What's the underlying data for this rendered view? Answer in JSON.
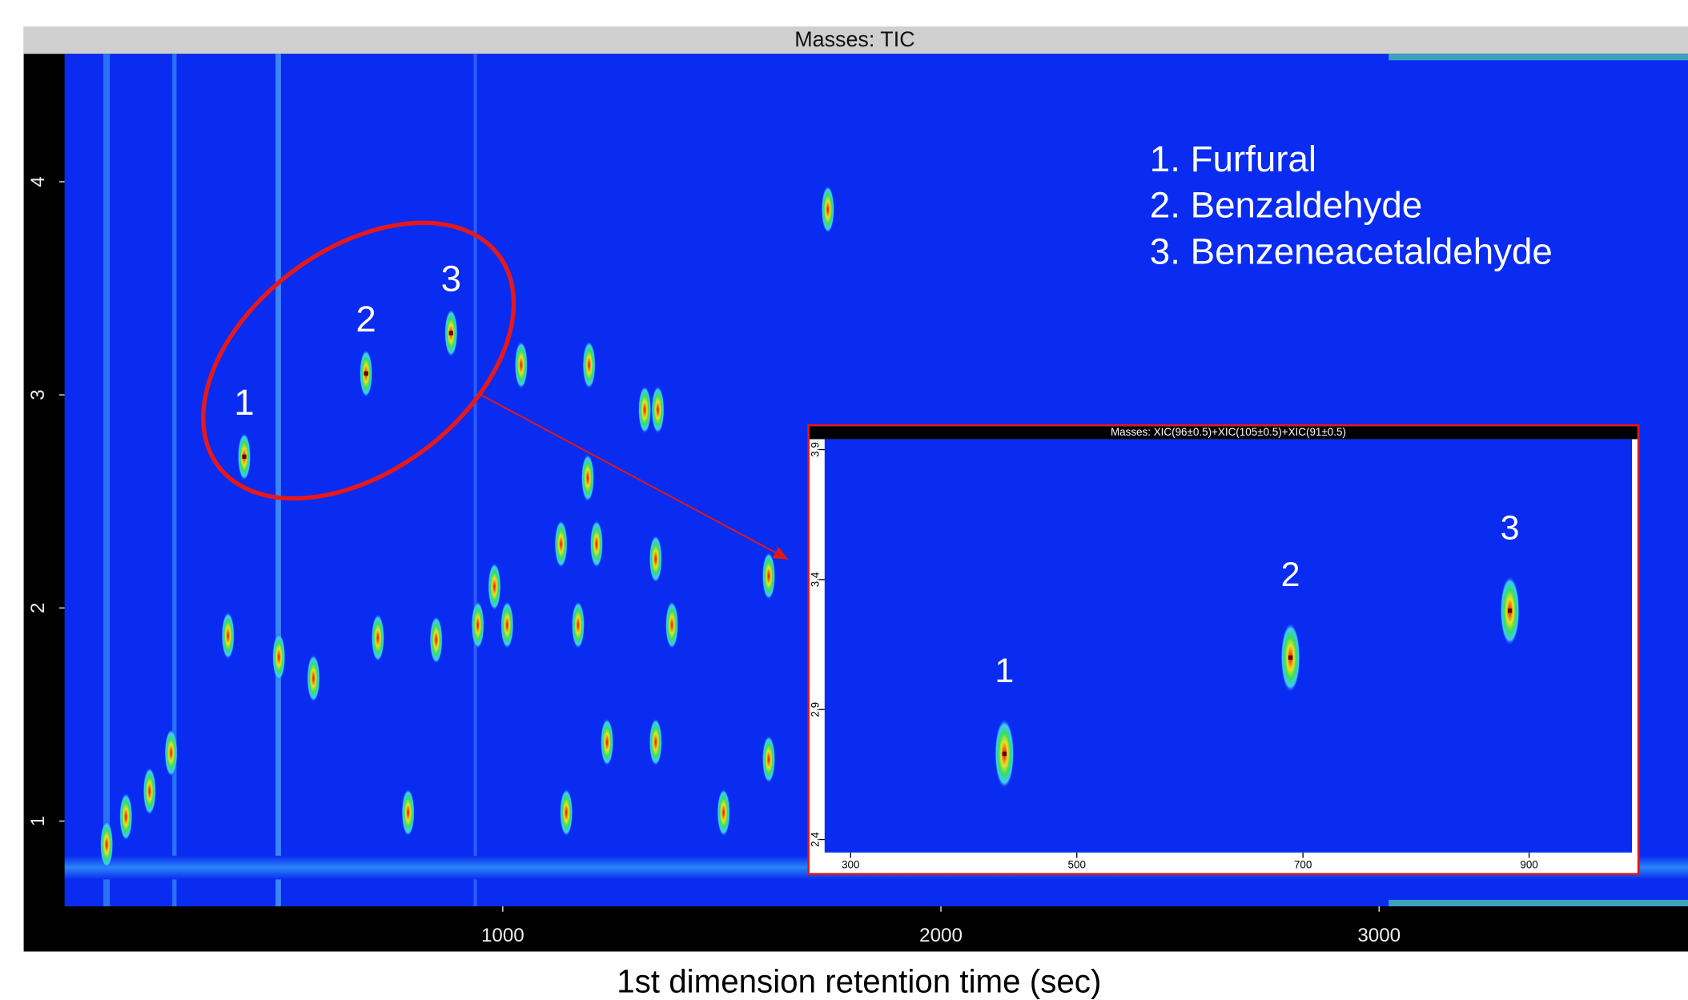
{
  "chart_data": [
    {
      "type": "peak_map",
      "title": "Masses:  TIC",
      "x_label": "1st dimension retention time (sec)",
      "xlim": [
        0,
        3705
      ],
      "ylim": [
        0.6,
        4.6
      ],
      "xticks": [
        1000,
        2000,
        3000
      ],
      "yticks": [
        1,
        2,
        3,
        4
      ],
      "legend": [
        "1. Furfural",
        "2. Benzaldehyde",
        "3. Benzeneacetaldehyde"
      ],
      "labeled_peaks": {
        "labels": [
          "1",
          "2",
          "3"
        ],
        "x": [
          410,
          688,
          882
        ],
        "y": [
          2.71,
          3.1,
          3.29
        ]
      },
      "other_peaks": {
        "x": [
          1197,
          1042,
          1194,
          1742,
          1354,
          1324,
          1133,
          1214,
          1349,
          943,
          1010,
          1172,
          1386,
          848,
          715,
          784,
          1145,
          1504,
          489,
          373,
          243,
          194,
          140,
          96,
          568,
          1238,
          1349,
          1607,
          1607,
          981
        ],
        "y": [
          3.14,
          3.14,
          2.61,
          3.87,
          2.93,
          2.93,
          2.3,
          2.3,
          2.23,
          1.92,
          1.92,
          1.92,
          1.92,
          1.85,
          1.86,
          1.04,
          1.04,
          1.04,
          1.77,
          1.87,
          1.32,
          1.14,
          1.02,
          0.89,
          1.67,
          1.37,
          1.37,
          1.29,
          2.15,
          2.1
        ]
      }
    },
    {
      "type": "peak_map",
      "title": "Masses:  XIC(96±0.5)+XIC(105±0.5)+XIC(91±0.5)",
      "xlim": [
        277,
        991
      ],
      "ylim": [
        2.35,
        3.94
      ],
      "xticks": [
        300,
        500,
        700,
        900
      ],
      "yticks": [
        2.4,
        2.9,
        3.4,
        3.9
      ],
      "labeled_peaks": {
        "labels": [
          "1",
          "2",
          "3"
        ],
        "x": [
          436,
          689,
          883
        ],
        "y": [
          2.73,
          3.1,
          3.28
        ]
      }
    }
  ]
}
